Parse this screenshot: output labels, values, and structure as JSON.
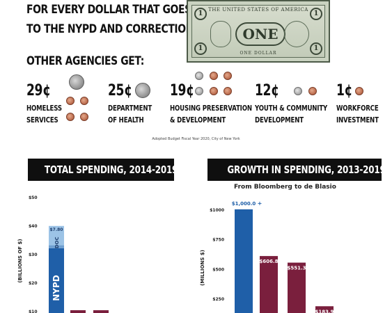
{
  "headline": {
    "line1": "FOR EVERY DOLLAR THAT GOES",
    "line2": "TO THE NYPD AND CORRECTIONS,",
    "other_agencies": "OTHER AGENCIES GET:"
  },
  "bill": {
    "header": "THE UNITED STATES OF AMERICA",
    "denomination": "ONE",
    "corner": "1",
    "footer": "ONE DOLLAR"
  },
  "agencies": [
    {
      "amount": "29¢",
      "name_line1": "HOMELESS",
      "name_line2": "SERVICES"
    },
    {
      "amount": "25¢",
      "name_line1": "DEPARTMENT",
      "name_line2": "OF HEALTH"
    },
    {
      "amount": "19¢",
      "name_line1": "HOUSING PRESERVATION",
      "name_line2": "& DEVELOPMENT"
    },
    {
      "amount": "12¢",
      "name_line1": "YOUTH & COMMUNITY",
      "name_line2": "DEVELOPMENT"
    },
    {
      "amount": "1¢",
      "name_line1": "WORKFORCE",
      "name_line2": "INVESTMENT"
    }
  ],
  "source": "Adopted Budget Fiscal Year 2020, City of New York",
  "colors": {
    "nypd_blue": "#1f5fa8",
    "doc_light_blue": "#9cc3e6",
    "maroon": "#7a1f3d",
    "banner_black": "#0f0f0f"
  },
  "chart_data": [
    {
      "type": "bar",
      "title": "TOTAL SPENDING, 2014-2019",
      "ylabel": "(BILLIONS OF $)",
      "ylim": [
        0,
        50
      ],
      "yticks": [
        10,
        20,
        30,
        40,
        50
      ],
      "ytick_labels": [
        "$10",
        "$20",
        "$30",
        "$40",
        "$50"
      ],
      "stack_labels": {
        "nypd": "NYPD",
        "doc": "DOC",
        "doc_value": "$7.80"
      },
      "bars": [
        {
          "nypd": 32,
          "doc": 7.8
        },
        {
          "value": 10
        },
        {
          "value": 10
        }
      ]
    },
    {
      "type": "bar",
      "title": "GROWTH IN SPENDING, 2013-2019",
      "subtitle": "From Bloomberg to de Blasio",
      "ylabel": "(MILLIONS $)",
      "ylim": [
        0,
        1000
      ],
      "yticks": [
        250,
        500,
        750,
        1000
      ],
      "ytick_labels": [
        "$250",
        "$500",
        "$750",
        "$1000"
      ],
      "bars": [
        {
          "value": 1000.0,
          "label": "$1,000.0",
          "suffix": "+",
          "color": "blue"
        },
        {
          "value": 606.8,
          "label": "$606.8",
          "color": "maroon"
        },
        {
          "value": 551.3,
          "label": "$551.3",
          "color": "maroon"
        },
        {
          "value": 183.9,
          "label": "$183.9",
          "color": "maroon"
        }
      ]
    }
  ]
}
